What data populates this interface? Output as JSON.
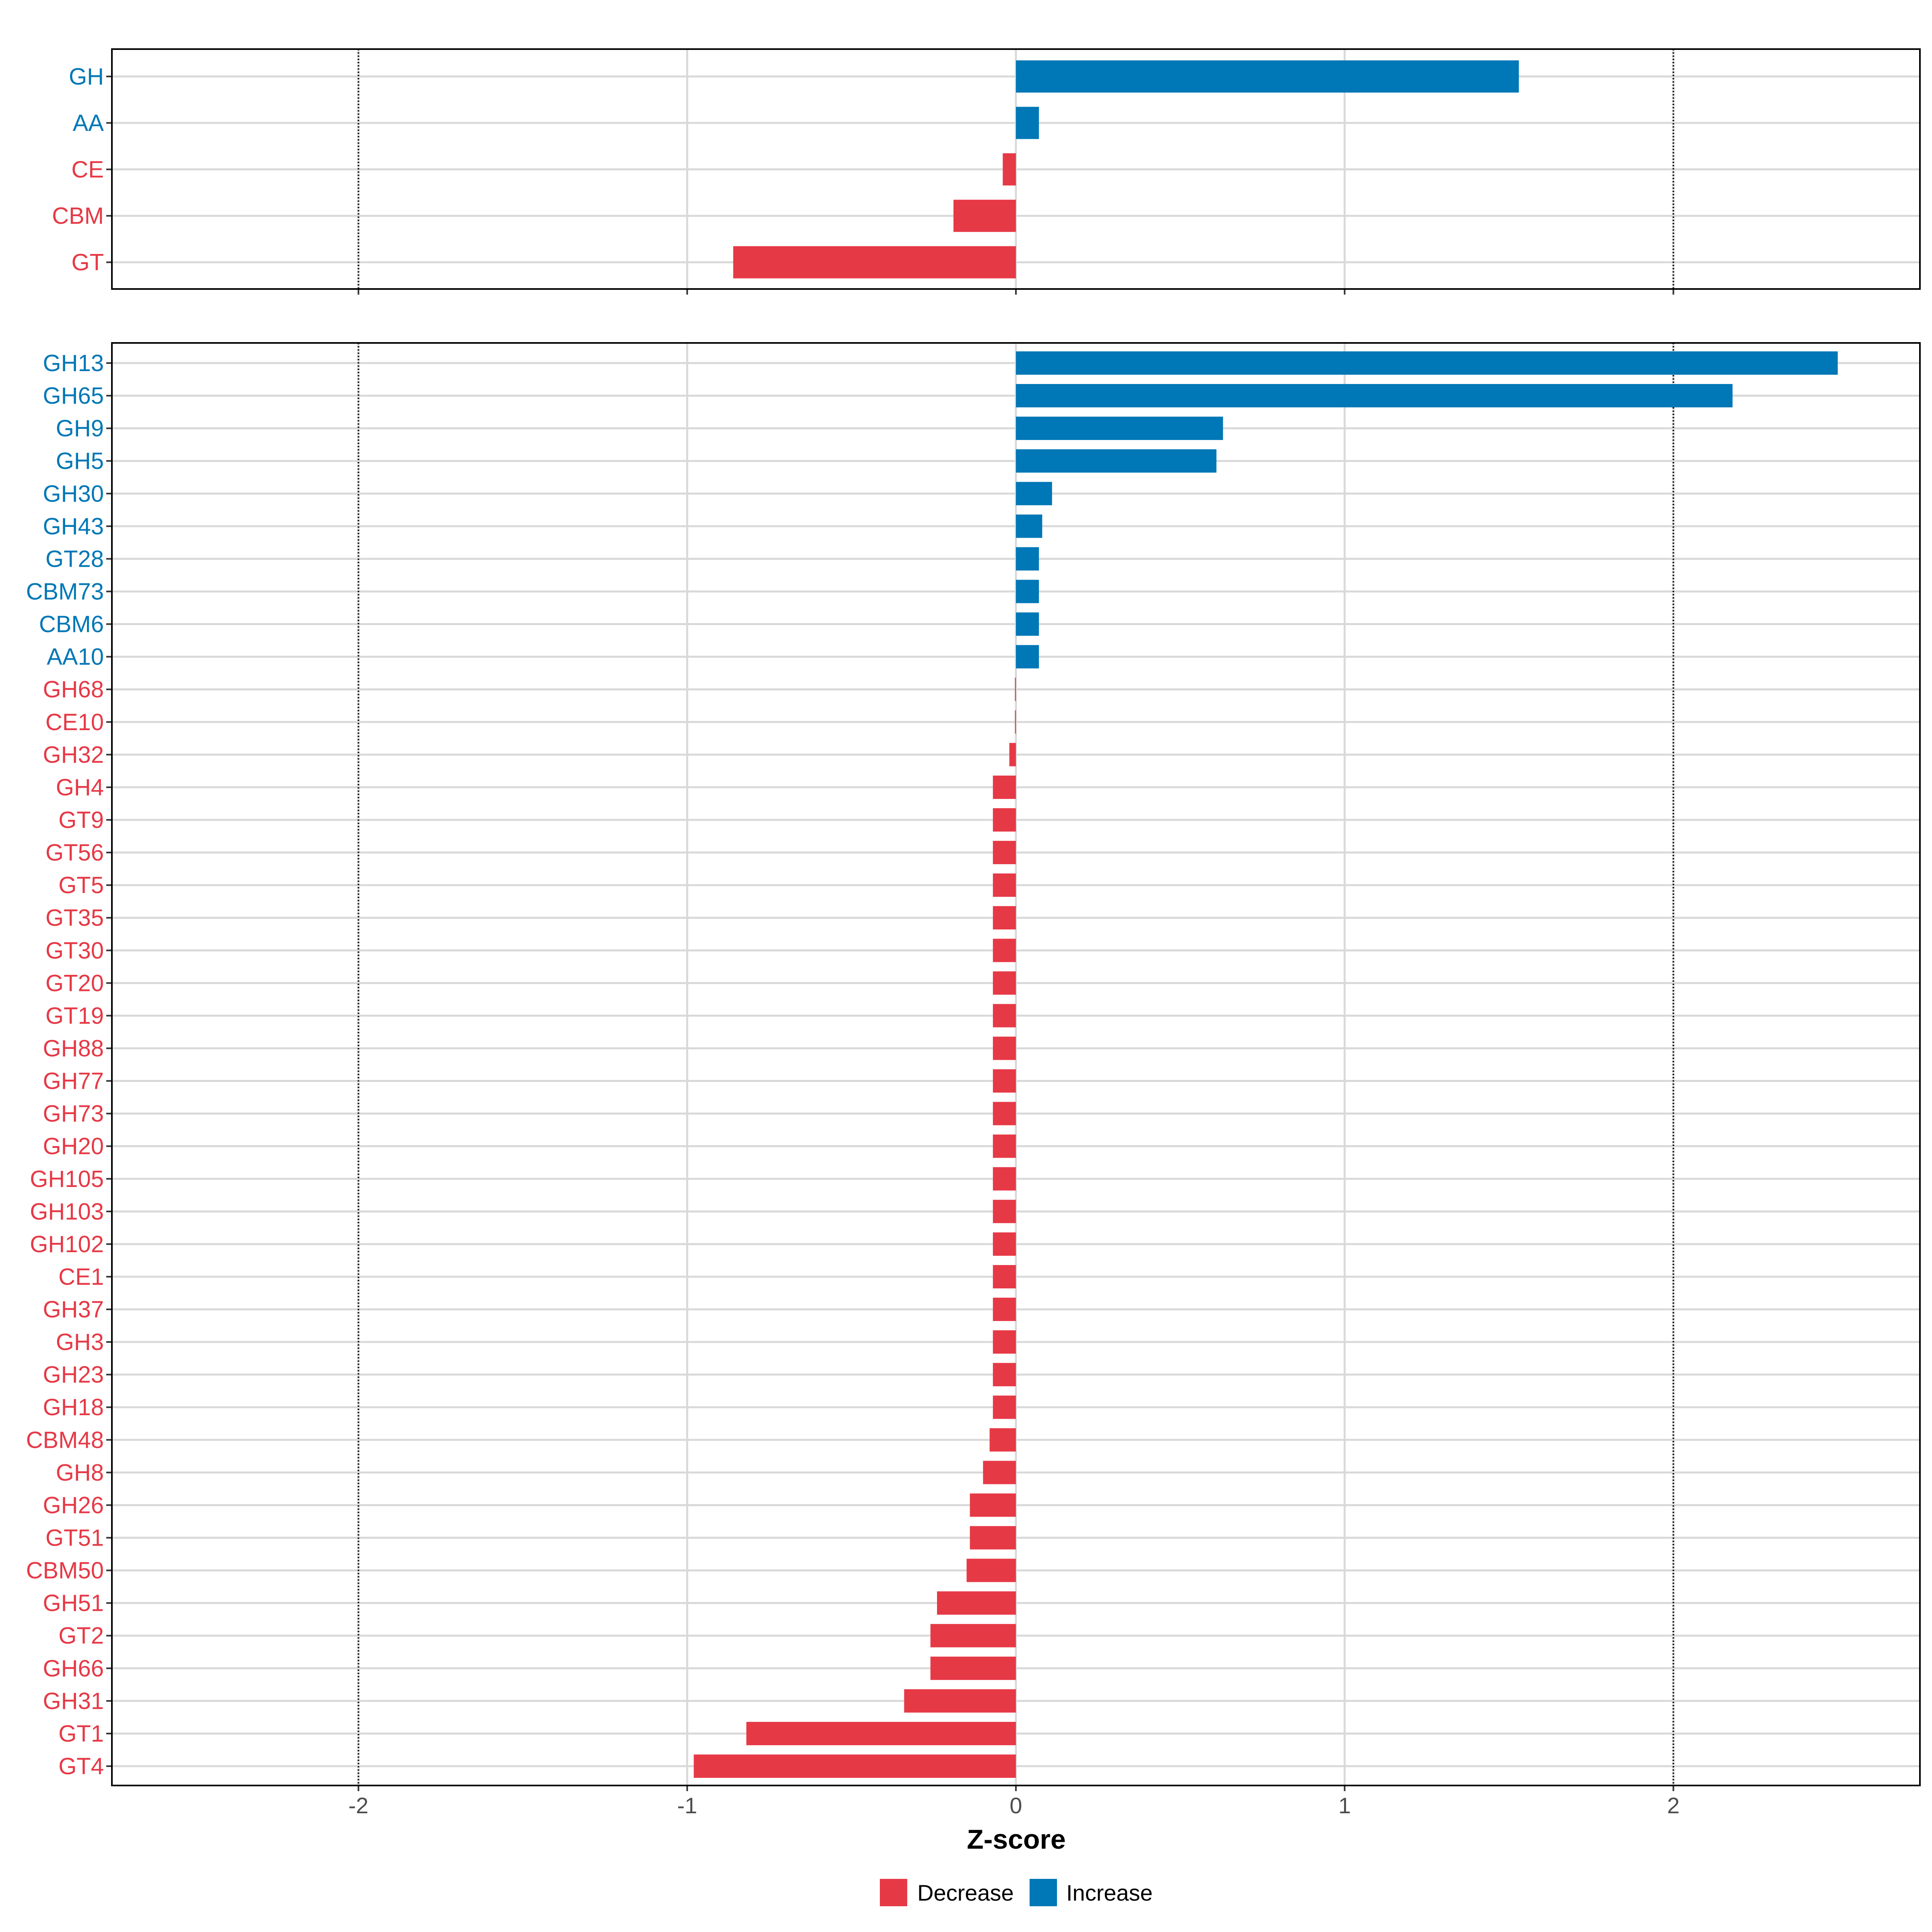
{
  "chart_data": {
    "type": "bar",
    "orientation": "horizontal",
    "xlabel": "Z-score",
    "xlim": [
      -2.75,
      2.75
    ],
    "xticks": [
      -2,
      -1,
      0,
      1,
      2
    ],
    "xtick_labels": [
      "-2",
      "-1",
      "0",
      "1",
      "2"
    ],
    "reference_lines": [
      -2,
      2
    ],
    "grid": true,
    "colors": {
      "Decrease": "#e63946",
      "Increase": "#0077b6"
    },
    "legend": {
      "position": "bottom",
      "items": [
        {
          "label": "Decrease",
          "color": "#e63946"
        },
        {
          "label": "Increase",
          "color": "#0077b6"
        }
      ]
    },
    "panels": [
      {
        "name": "class",
        "categories": [
          "GH",
          "AA",
          "CE",
          "CBM",
          "GT"
        ],
        "values": [
          1.53,
          0.07,
          -0.04,
          -0.19,
          -0.86
        ]
      },
      {
        "name": "family",
        "categories": [
          "GH13",
          "GH65",
          "GH9",
          "GH5",
          "GH30",
          "GH43",
          "GT28",
          "CBM73",
          "CBM6",
          "AA10",
          "GH68",
          "CE10",
          "GH32",
          "GH4",
          "GT9",
          "GT56",
          "GT5",
          "GT35",
          "GT30",
          "GT20",
          "GT19",
          "GH88",
          "GH77",
          "GH73",
          "GH20",
          "GH105",
          "GH103",
          "GH102",
          "CE1",
          "GH37",
          "GH3",
          "GH23",
          "GH18",
          "CBM48",
          "GH8",
          "GH26",
          "GT51",
          "CBM50",
          "GH51",
          "GT2",
          "GH66",
          "GH31",
          "GT1",
          "GT4"
        ],
        "values": [
          2.5,
          2.18,
          0.63,
          0.61,
          0.11,
          0.08,
          0.07,
          0.07,
          0.07,
          0.07,
          -0.003,
          -0.003,
          -0.02,
          -0.07,
          -0.07,
          -0.07,
          -0.07,
          -0.07,
          -0.07,
          -0.07,
          -0.07,
          -0.07,
          -0.07,
          -0.07,
          -0.07,
          -0.07,
          -0.07,
          -0.07,
          -0.07,
          -0.07,
          -0.07,
          -0.07,
          -0.07,
          -0.08,
          -0.1,
          -0.14,
          -0.14,
          -0.15,
          -0.24,
          -0.26,
          -0.26,
          -0.34,
          -0.82,
          -0.98
        ]
      }
    ]
  }
}
